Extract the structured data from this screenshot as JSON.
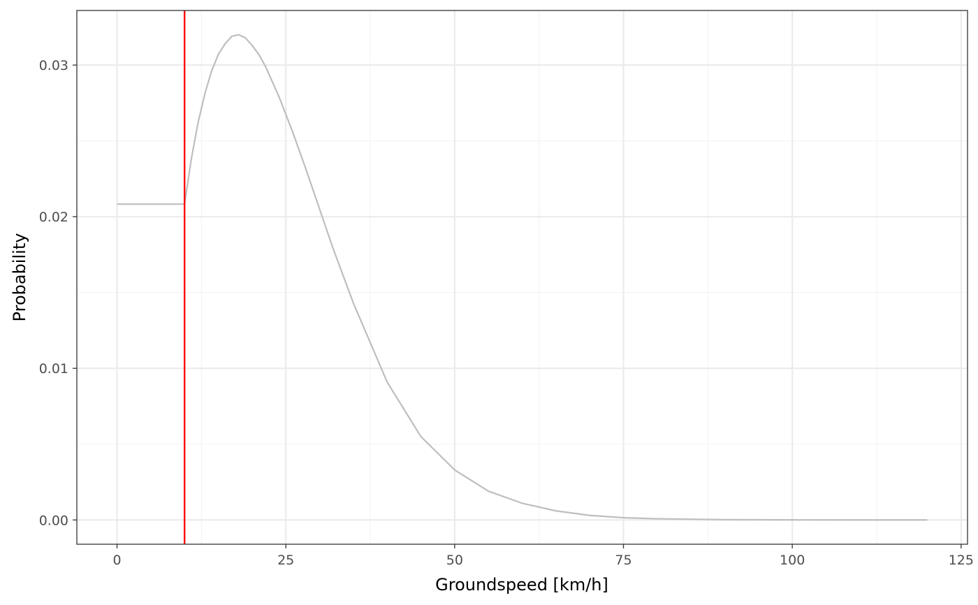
{
  "chart_data": {
    "type": "line",
    "title": "",
    "xlabel": "Groundspeed [km/h]",
    "ylabel": "Probability",
    "xlim": [
      -5.95,
      125.95
    ],
    "ylim": [
      -0.0016,
      0.0336
    ],
    "x_ticks": [
      0,
      25,
      50,
      75,
      100,
      125
    ],
    "x_tick_labels": [
      "0",
      "25",
      "50",
      "75",
      "100",
      "125"
    ],
    "y_ticks": [
      0.0,
      0.01,
      0.02,
      0.03
    ],
    "y_tick_labels": [
      "0.00",
      "0.01",
      "0.02",
      "0.03"
    ],
    "grid": true,
    "legend": "none",
    "series": [
      {
        "color": "#bebebe",
        "x": [
          0,
          10,
          11,
          12,
          13,
          14,
          15,
          16,
          17,
          18,
          19,
          20,
          21,
          22,
          24,
          26,
          28,
          30,
          32,
          35,
          40,
          45,
          50,
          55,
          60,
          65,
          70,
          75,
          80,
          90,
          100,
          110,
          120
        ],
        "y": [
          0.02083,
          0.02083,
          0.0238,
          0.0262,
          0.0281,
          0.0296,
          0.0307,
          0.0314,
          0.0319,
          0.032,
          0.0318,
          0.0313,
          0.0307,
          0.0299,
          0.0279,
          0.0256,
          0.0231,
          0.0205,
          0.0179,
          0.0143,
          0.0091,
          0.0055,
          0.0033,
          0.0019,
          0.0011,
          0.0006,
          0.0003,
          0.00015,
          8e-05,
          2e-05,
          5e-06,
          1e-06,
          0.0
        ]
      }
    ],
    "vline": {
      "x": 10,
      "color": "#ff0000"
    },
    "colors": {
      "panel_border": "#333333",
      "grid_major": "#ebebeb",
      "grid_minor": "#f3f3f3",
      "tick": "#333333"
    }
  }
}
